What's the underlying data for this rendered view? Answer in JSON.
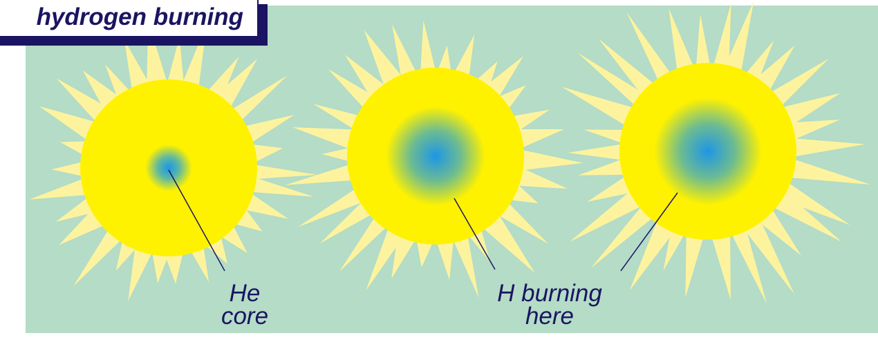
{
  "title": "hydrogen burning",
  "labels": {
    "he_line1": "He",
    "he_line2": "core",
    "h_line1": "H burning",
    "h_line2": "here"
  },
  "colors": {
    "background": "#b4dcc6",
    "ray": "#fdf39e",
    "disk": "#fff200",
    "core_center": "#1e96e6",
    "text": "#1b1462"
  },
  "stars": [
    {
      "name": "star-small-core",
      "core_fraction": 0.25
    },
    {
      "name": "star-medium-core",
      "core_fraction": 0.55
    },
    {
      "name": "star-large-core",
      "core_fraction": 0.6
    }
  ]
}
